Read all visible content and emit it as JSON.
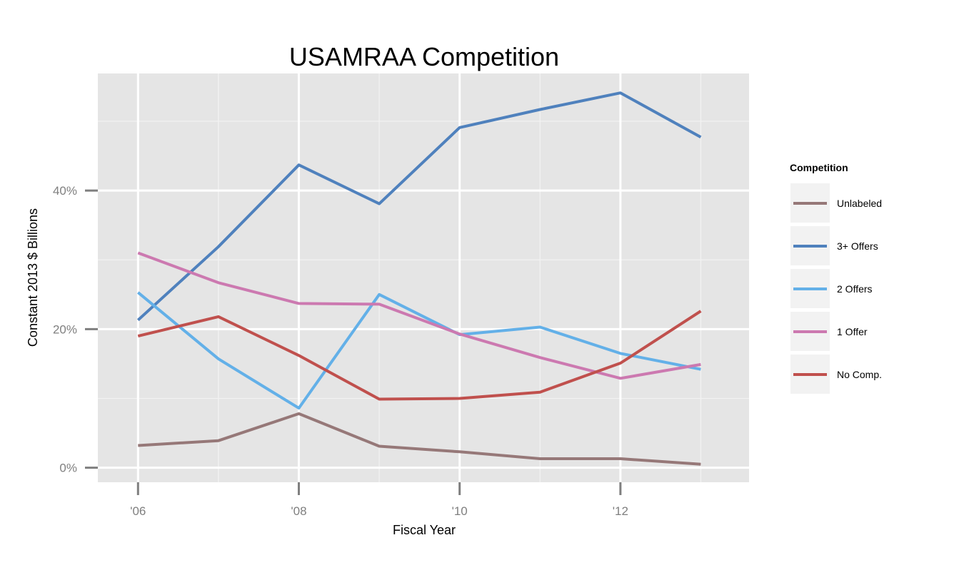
{
  "chart_data": {
    "type": "line",
    "title": "USAMRAA Competition",
    "xlabel": "Fiscal Year",
    "ylabel": "Constant 2013 $ Billions",
    "x": [
      2006,
      2007,
      2008,
      2009,
      2010,
      2011,
      2012,
      2013
    ],
    "xticks": [
      2006,
      2008,
      2010,
      2012
    ],
    "xtick_labels": [
      "'06",
      "'08",
      "'10",
      "'12"
    ],
    "xlim": [
      2005.5,
      2013.6
    ],
    "yticks": [
      0,
      20,
      40
    ],
    "ytick_labels": [
      "0%",
      "20%",
      "40%"
    ],
    "ylim": [
      -2.1,
      56.9
    ],
    "grid": true,
    "legend": {
      "title": "Competition",
      "position": "right"
    },
    "series": [
      {
        "name": "Unlabeled",
        "color": "#967878",
        "values": [
          3.2,
          3.9,
          7.8,
          3.1,
          2.3,
          1.3,
          1.3,
          0.5
        ]
      },
      {
        "name": "3+ Offers",
        "color": "#4f81bd",
        "values": [
          21.3,
          31.9,
          43.7,
          38.1,
          49.1,
          51.7,
          54.1,
          47.7
        ]
      },
      {
        "name": "2 Offers",
        "color": "#63b0e8",
        "values": [
          25.3,
          15.7,
          8.6,
          25.0,
          19.2,
          20.3,
          16.5,
          14.2
        ]
      },
      {
        "name": "1 Offer",
        "color": "#cc79b0",
        "values": [
          31.0,
          26.7,
          23.7,
          23.6,
          19.3,
          15.9,
          12.9,
          14.9
        ]
      },
      {
        "name": "No Comp.",
        "color": "#c0504d",
        "values": [
          19.0,
          21.8,
          16.2,
          9.9,
          10.0,
          10.9,
          15.1,
          22.6
        ]
      }
    ]
  }
}
